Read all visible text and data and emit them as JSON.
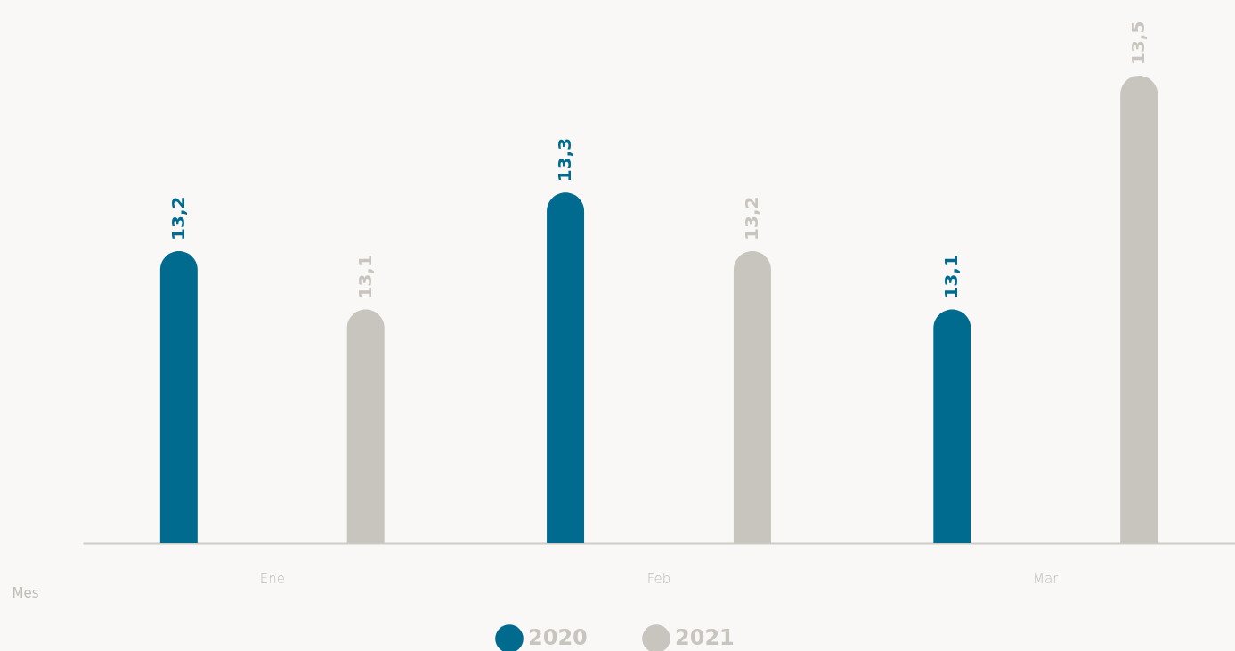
{
  "chart_data": {
    "type": "bar",
    "xlabel": "Mes",
    "categories": [
      "Ene",
      "Feb",
      "Mar"
    ],
    "series": [
      {
        "name": "2020",
        "color": "#006b8f",
        "values": [
          13.2,
          13.3,
          13.1
        ],
        "value_labels": [
          "13,2",
          "13,3",
          "13,1"
        ]
      },
      {
        "name": "2021",
        "color": "#c8c4be",
        "values": [
          13.1,
          13.2,
          13.5
        ],
        "value_labels": [
          "13,1",
          "13,2",
          "13,5"
        ]
      }
    ],
    "ylim": [
      12.7,
      13.5
    ],
    "legend": "bottom",
    "grid": false
  }
}
